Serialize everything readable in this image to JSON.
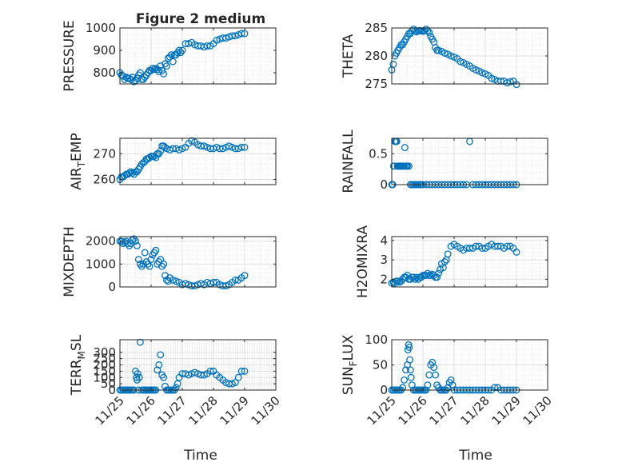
{
  "figure": {
    "title": "Figure 2 medium",
    "xlabel": "Time",
    "x_tick_labels": [
      "11/25",
      "11/26",
      "11/27",
      "11/28",
      "11/29",
      "11/30"
    ],
    "marker_color": "#0072BD"
  },
  "chart_data": [
    {
      "type": "scatter",
      "ylabel": "PRESSURE",
      "xlim": [
        25,
        30
      ],
      "ylim": [
        750,
        1000
      ],
      "yticks": [
        800,
        900,
        1000
      ],
      "x_tick_labels_visible": false,
      "grid": true,
      "x": [
        25.0,
        25.05,
        25.1,
        25.15,
        25.2,
        25.25,
        25.3,
        25.35,
        25.4,
        25.45,
        25.5,
        25.55,
        25.6,
        25.65,
        25.7,
        25.75,
        25.8,
        25.85,
        25.9,
        25.95,
        26.0,
        26.05,
        26.1,
        26.15,
        26.2,
        26.25,
        26.3,
        26.35,
        26.4,
        26.45,
        26.5,
        26.55,
        26.6,
        26.65,
        26.7,
        26.75,
        26.8,
        26.85,
        26.9,
        26.95,
        27.0,
        27.1,
        27.2,
        27.3,
        27.4,
        27.5,
        27.6,
        27.7,
        27.8,
        27.9,
        28.0,
        28.1,
        28.2,
        28.3,
        28.4,
        28.5,
        28.6,
        28.7,
        28.8,
        28.9,
        29.0
      ],
      "y": [
        800,
        790,
        785,
        770,
        780,
        775,
        775,
        770,
        780,
        760,
        765,
        775,
        790,
        800,
        770,
        770,
        780,
        790,
        800,
        810,
        810,
        820,
        815,
        820,
        815,
        805,
        830,
        810,
        795,
        840,
        830,
        865,
        870,
        880,
        850,
        880,
        880,
        890,
        900,
        890,
        900,
        930,
        930,
        935,
        925,
        920,
        920,
        915,
        920,
        920,
        930,
        945,
        950,
        955,
        955,
        960,
        965,
        965,
        970,
        975,
        975
      ]
    },
    {
      "type": "scatter",
      "ylabel": "THETA",
      "xlim": [
        25,
        30
      ],
      "ylim": [
        275,
        285
      ],
      "yticks": [
        275,
        280,
        285
      ],
      "x_tick_labels_visible": false,
      "grid": true,
      "x": [
        25.0,
        25.05,
        25.1,
        25.15,
        25.2,
        25.25,
        25.3,
        25.35,
        25.4,
        25.45,
        25.5,
        25.55,
        25.6,
        25.65,
        25.7,
        25.75,
        25.8,
        25.85,
        25.9,
        25.95,
        26.0,
        26.05,
        26.1,
        26.15,
        26.2,
        26.25,
        26.3,
        26.35,
        26.4,
        26.45,
        26.5,
        26.6,
        26.7,
        26.8,
        26.9,
        27.0,
        27.1,
        27.2,
        27.3,
        27.4,
        27.5,
        27.6,
        27.7,
        27.8,
        27.9,
        28.0,
        28.1,
        28.2,
        28.3,
        28.4,
        28.5,
        28.6,
        28.7,
        28.8,
        28.9,
        29.0
      ],
      "y": [
        277.5,
        278.5,
        280,
        280.5,
        281,
        281.5,
        282,
        282,
        282.5,
        283,
        283.5,
        284,
        284,
        284.5,
        284.8,
        284.5,
        284.3,
        284.5,
        284.5,
        284.5,
        284.4,
        284.5,
        284.8,
        284.5,
        284.2,
        283.5,
        283,
        282.5,
        281.5,
        281,
        281,
        280.8,
        280.5,
        280.3,
        280,
        279.8,
        279.5,
        279,
        278.8,
        278.5,
        278.2,
        277.8,
        277.5,
        277.3,
        277,
        276.8,
        276.5,
        276,
        275.8,
        275.5,
        275.5,
        275.5,
        275.2,
        275.4,
        275.5,
        274.9
      ]
    },
    {
      "type": "scatter",
      "ylabel": "AIR_T_EMP",
      "xlim": [
        25,
        30
      ],
      "ylim": [
        258,
        276
      ],
      "yticks": [
        260,
        270
      ],
      "x_tick_labels_visible": false,
      "grid": true,
      "x": [
        25.0,
        25.05,
        25.1,
        25.15,
        25.2,
        25.25,
        25.3,
        25.35,
        25.4,
        25.45,
        25.5,
        25.55,
        25.6,
        25.65,
        25.7,
        25.75,
        25.8,
        25.85,
        25.9,
        25.95,
        26.0,
        26.05,
        26.1,
        26.15,
        26.2,
        26.25,
        26.3,
        26.35,
        26.4,
        26.45,
        26.5,
        26.6,
        26.7,
        26.8,
        26.9,
        27.0,
        27.1,
        27.2,
        27.3,
        27.4,
        27.5,
        27.6,
        27.7,
        27.8,
        27.9,
        28.0,
        28.1,
        28.2,
        28.3,
        28.4,
        28.5,
        28.6,
        28.7,
        28.8,
        28.9,
        29.0
      ],
      "y": [
        260,
        261,
        261,
        261.5,
        262,
        262,
        262.5,
        263,
        262.5,
        262,
        263,
        263,
        264,
        265,
        266,
        266.5,
        267,
        268,
        268,
        268.5,
        269,
        269,
        269,
        268.5,
        270,
        270,
        271,
        273,
        273,
        272.5,
        272,
        271.5,
        272,
        272,
        271.5,
        272,
        272.5,
        274,
        275,
        274.5,
        273.5,
        273,
        273,
        272.5,
        272,
        272,
        272.5,
        272,
        272,
        272.5,
        273,
        272.5,
        272,
        272,
        272.5,
        272.5
      ]
    },
    {
      "type": "scatter",
      "ylabel": "RAINFALL",
      "xlim": [
        25,
        30
      ],
      "ylim": [
        0,
        0.75
      ],
      "yticks": [
        0,
        0.5
      ],
      "x_tick_labels_visible": false,
      "grid": true,
      "x": [
        25.0,
        25.03,
        25.06,
        25.08,
        25.1,
        25.12,
        25.14,
        25.16,
        25.18,
        25.2,
        25.22,
        25.25,
        25.28,
        25.3,
        25.32,
        25.35,
        25.38,
        25.4,
        25.42,
        25.45,
        25.48,
        25.5,
        25.55,
        25.6,
        25.65,
        25.7,
        25.75,
        25.8,
        25.85,
        25.9,
        25.95,
        26.0,
        26.1,
        26.2,
        26.3,
        26.4,
        26.5,
        26.6,
        26.7,
        26.8,
        26.9,
        27.0,
        27.1,
        27.2,
        27.3,
        27.4,
        27.5,
        27.6,
        27.7,
        27.8,
        27.9,
        28.0,
        28.1,
        28.2,
        28.3,
        28.4,
        28.5,
        28.6,
        28.7,
        28.8,
        28.9,
        29.0
      ],
      "y": [
        0,
        0,
        0.3,
        0.3,
        0.7,
        0.7,
        0.7,
        0.7,
        0.3,
        0.3,
        0.3,
        0.3,
        0.3,
        0.3,
        0.3,
        0.3,
        0.3,
        0.3,
        0.6,
        0.3,
        0.3,
        0.3,
        0.3,
        0,
        0,
        0,
        0,
        0,
        0,
        0,
        0,
        0,
        0,
        0,
        0,
        0,
        0,
        0,
        0,
        0,
        0,
        0,
        0,
        0,
        0,
        0,
        0.7,
        0,
        0,
        0,
        0,
        0,
        0,
        0,
        0,
        0,
        0,
        0,
        0,
        0,
        0,
        0
      ]
    },
    {
      "type": "scatter",
      "ylabel": "MIXDEPTH",
      "xlim": [
        25,
        30
      ],
      "ylim": [
        0,
        2200
      ],
      "yticks": [
        0,
        1000,
        2000
      ],
      "x_tick_labels_visible": false,
      "grid": true,
      "x": [
        25.0,
        25.05,
        25.1,
        25.15,
        25.2,
        25.25,
        25.3,
        25.35,
        25.4,
        25.45,
        25.5,
        25.55,
        25.6,
        25.65,
        25.7,
        25.75,
        25.8,
        25.85,
        25.9,
        25.95,
        26.0,
        26.05,
        26.1,
        26.15,
        26.2,
        26.25,
        26.3,
        26.35,
        26.4,
        26.45,
        26.5,
        26.55,
        26.6,
        26.7,
        26.8,
        26.9,
        27.0,
        27.1,
        27.2,
        27.3,
        27.4,
        27.5,
        27.6,
        27.7,
        27.8,
        27.9,
        28.0,
        28.1,
        28.2,
        28.3,
        28.4,
        28.5,
        28.6,
        28.7,
        28.8,
        28.9,
        29.0
      ],
      "y": [
        2000,
        2000,
        1900,
        1950,
        2000,
        1900,
        1800,
        1900,
        2050,
        2100,
        2000,
        1800,
        1200,
        1000,
        900,
        1000,
        1500,
        1100,
        1000,
        900,
        1200,
        1400,
        1500,
        1600,
        1000,
        1100,
        1200,
        900,
        1000,
        500,
        300,
        250,
        400,
        300,
        250,
        200,
        100,
        150,
        100,
        50,
        50,
        100,
        150,
        100,
        200,
        150,
        200,
        200,
        100,
        50,
        50,
        100,
        200,
        300,
        300,
        400,
        500
      ]
    },
    {
      "type": "scatter",
      "ylabel": "H2OMIXRA",
      "xlim": [
        25,
        30
      ],
      "ylim": [
        1.6,
        4.2
      ],
      "yticks": [
        2,
        3,
        4
      ],
      "x_tick_labels_visible": false,
      "grid": true,
      "x": [
        25.0,
        25.05,
        25.1,
        25.15,
        25.2,
        25.25,
        25.3,
        25.35,
        25.4,
        25.45,
        25.5,
        25.55,
        25.6,
        25.65,
        25.7,
        25.75,
        25.8,
        25.85,
        25.9,
        25.95,
        26.0,
        26.05,
        26.1,
        26.15,
        26.2,
        26.25,
        26.3,
        26.35,
        26.4,
        26.45,
        26.5,
        26.55,
        26.6,
        26.65,
        26.7,
        26.75,
        26.8,
        26.9,
        27.0,
        27.1,
        27.2,
        27.3,
        27.4,
        27.5,
        27.6,
        27.7,
        27.8,
        27.9,
        28.0,
        28.1,
        28.2,
        28.3,
        28.4,
        28.5,
        28.6,
        28.7,
        28.8,
        28.9,
        29.0
      ],
      "y": [
        1.8,
        1.85,
        1.8,
        1.9,
        1.9,
        1.85,
        1.9,
        2.0,
        2.1,
        2.1,
        2.2,
        2.0,
        2.0,
        2.1,
        2.1,
        2.0,
        2.1,
        2.0,
        2.1,
        2.1,
        2.2,
        2.2,
        2.2,
        2.3,
        2.2,
        2.2,
        2.25,
        2.2,
        2.1,
        2.1,
        2.3,
        2.5,
        2.8,
        2.6,
        2.9,
        3.0,
        3.3,
        3.7,
        3.8,
        3.7,
        3.6,
        3.5,
        3.6,
        3.6,
        3.6,
        3.7,
        3.7,
        3.6,
        3.6,
        3.7,
        3.8,
        3.7,
        3.7,
        3.7,
        3.6,
        3.7,
        3.7,
        3.6,
        3.4
      ]
    },
    {
      "type": "scatter",
      "ylabel": "TERR_M_SL",
      "xlim": [
        25,
        30
      ],
      "ylim": [
        0,
        400
      ],
      "yticks": [
        0,
        50,
        100,
        150,
        200,
        250,
        300
      ],
      "x_tick_labels_visible": true,
      "grid": true,
      "x": [
        25.0,
        25.05,
        25.1,
        25.15,
        25.2,
        25.25,
        25.3,
        25.35,
        25.4,
        25.45,
        25.5,
        25.53,
        25.55,
        25.57,
        25.6,
        25.62,
        25.65,
        25.7,
        25.75,
        25.8,
        25.85,
        25.9,
        25.95,
        26.0,
        26.05,
        26.1,
        26.15,
        26.2,
        26.25,
        26.3,
        26.35,
        26.4,
        26.45,
        26.5,
        26.55,
        26.6,
        26.65,
        26.7,
        26.75,
        26.8,
        26.85,
        26.9,
        27.0,
        27.1,
        27.2,
        27.3,
        27.4,
        27.5,
        27.6,
        27.7,
        27.8,
        27.9,
        28.0,
        28.1,
        28.2,
        28.3,
        28.4,
        28.5,
        28.6,
        28.7,
        28.8,
        28.9,
        29.0
      ],
      "y": [
        0,
        0,
        0,
        0,
        0,
        0,
        0,
        0,
        0,
        0,
        150,
        100,
        80,
        130,
        0,
        100,
        380,
        0,
        0,
        0,
        0,
        0,
        0,
        0,
        0,
        0,
        0,
        160,
        200,
        280,
        120,
        100,
        30,
        0,
        0,
        0,
        0,
        0,
        0,
        20,
        50,
        100,
        130,
        130,
        120,
        130,
        140,
        130,
        120,
        120,
        130,
        150,
        150,
        120,
        100,
        80,
        60,
        50,
        50,
        60,
        100,
        150,
        150
      ]
    },
    {
      "type": "scatter",
      "ylabel": "SUN_F_LUX",
      "xlim": [
        25,
        30
      ],
      "ylim": [
        0,
        100
      ],
      "yticks": [
        0,
        50,
        100
      ],
      "x_tick_labels_visible": true,
      "grid": true,
      "x": [
        25.0,
        25.05,
        25.1,
        25.15,
        25.2,
        25.25,
        25.3,
        25.35,
        25.4,
        25.45,
        25.5,
        25.52,
        25.54,
        25.56,
        25.58,
        25.6,
        25.62,
        25.65,
        25.7,
        25.75,
        25.8,
        25.85,
        25.9,
        25.95,
        26.0,
        26.05,
        26.1,
        26.15,
        26.2,
        26.25,
        26.3,
        26.35,
        26.4,
        26.45,
        26.5,
        26.55,
        26.6,
        26.65,
        26.7,
        26.75,
        26.8,
        26.85,
        26.9,
        26.95,
        27.0,
        27.1,
        27.2,
        27.3,
        27.4,
        27.5,
        27.6,
        27.7,
        27.8,
        27.9,
        28.0,
        28.1,
        28.2,
        28.3,
        28.4,
        28.5,
        28.6,
        28.7,
        28.8,
        28.9,
        29.0
      ],
      "y": [
        0,
        0,
        0,
        0,
        0,
        0,
        0,
        5,
        20,
        40,
        50,
        80,
        90,
        85,
        60,
        40,
        25,
        10,
        0,
        0,
        0,
        0,
        0,
        0,
        0,
        0,
        0,
        10,
        30,
        50,
        55,
        45,
        30,
        10,
        5,
        0,
        0,
        0,
        0,
        0,
        5,
        15,
        20,
        10,
        0,
        0,
        0,
        0,
        0,
        0,
        0,
        0,
        0,
        0,
        0,
        0,
        0,
        5,
        5,
        0,
        0,
        0,
        0,
        0,
        0
      ]
    }
  ]
}
